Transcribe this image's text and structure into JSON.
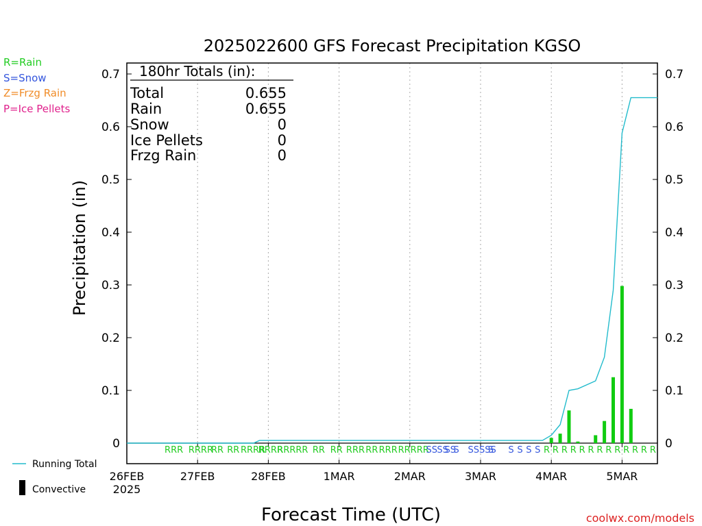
{
  "chart_data": {
    "type": "bar",
    "title": "2025022600 GFS Forecast Precipitation KGSO",
    "xlabel": "Forecast Time (UTC)",
    "ylabel": "Precipitation (in)",
    "ylim": [
      0,
      0.72
    ],
    "yticks": [
      "0",
      "0.1",
      "0.2",
      "0.3",
      "0.4",
      "0.5",
      "0.6",
      "0.7"
    ],
    "xlim_hours": [
      0,
      180
    ],
    "x_ticks": [
      {
        "hour": 0,
        "label": "26FEB",
        "sublabel": "2025"
      },
      {
        "hour": 24,
        "label": "27FEB"
      },
      {
        "hour": 48,
        "label": "28FEB"
      },
      {
        "hour": 72,
        "label": "1MAR"
      },
      {
        "hour": 96,
        "label": "2MAR"
      },
      {
        "hour": 120,
        "label": "3MAR"
      },
      {
        "hour": 144,
        "label": "4MAR"
      },
      {
        "hour": 168,
        "label": "5MAR"
      }
    ],
    "grid": true,
    "legend_types": [
      {
        "text": "R=Rain",
        "color": "#22cc22"
      },
      {
        "text": "S=Snow",
        "color": "#3355dd"
      },
      {
        "text": "Z=Frzg Rain",
        "color": "#f08c28"
      },
      {
        "text": "P=Ice Pellets",
        "color": "#e0208c"
      }
    ],
    "legend_series": [
      {
        "text": "Running Total",
        "color": "#22bbcc"
      },
      {
        "text": "Convective",
        "color": "#000000"
      }
    ],
    "totals": {
      "heading": "180hr Totals (in):",
      "rows": [
        {
          "label": "Total",
          "value": "0.655"
        },
        {
          "label": "Rain",
          "value": "0.655"
        },
        {
          "label": "Snow",
          "value": "0"
        },
        {
          "label": "Ice Pellets",
          "value": "0"
        },
        {
          "label": "Frzg Rain",
          "value": "0"
        }
      ]
    },
    "series": [
      {
        "name": "Precipitation",
        "color": "#11cc11",
        "points": [
          {
            "hour": 144,
            "value": 0.01
          },
          {
            "hour": 147,
            "value": 0.018
          },
          {
            "hour": 150,
            "value": 0.062
          },
          {
            "hour": 153,
            "value": 0.003
          },
          {
            "hour": 159,
            "value": 0.015
          },
          {
            "hour": 162,
            "value": 0.042
          },
          {
            "hour": 165,
            "value": 0.125
          },
          {
            "hour": 168,
            "value": 0.298
          },
          {
            "hour": 171,
            "value": 0.065
          }
        ]
      },
      {
        "name": "Running Total",
        "color": "#22bbcc",
        "points": [
          {
            "hour": 0,
            "value": 0
          },
          {
            "hour": 43,
            "value": 0
          },
          {
            "hour": 45,
            "value": 0.005
          },
          {
            "hour": 141,
            "value": 0.005
          },
          {
            "hour": 144,
            "value": 0.015
          },
          {
            "hour": 147,
            "value": 0.035
          },
          {
            "hour": 150,
            "value": 0.1
          },
          {
            "hour": 153,
            "value": 0.103
          },
          {
            "hour": 159,
            "value": 0.118
          },
          {
            "hour": 162,
            "value": 0.163
          },
          {
            "hour": 165,
            "value": 0.29
          },
          {
            "hour": 168,
            "value": 0.588
          },
          {
            "hour": 171,
            "value": 0.655
          },
          {
            "hour": 180,
            "value": 0.655
          }
        ]
      }
    ],
    "ptype_strip": [
      {
        "text": "RRR",
        "color": "#22cc22",
        "hour": 12.8
      },
      {
        "text": "RRRR",
        "color": "#22cc22",
        "hour": 20.9
      },
      {
        "text": "RR",
        "color": "#22cc22",
        "hour": 28.6
      },
      {
        "text": "RR",
        "color": "#22cc22",
        "hour": 34
      },
      {
        "text": "RRRR",
        "color": "#22cc22",
        "hour": 38.6
      },
      {
        "text": "RRRR",
        "color": "#22cc22",
        "hour": 44.6
      },
      {
        "text": "RRRRR",
        "color": "#22cc22",
        "hour": 51
      },
      {
        "text": "RR",
        "color": "#22cc22",
        "hour": 63
      },
      {
        "text": "RR",
        "color": "#22cc22",
        "hour": 69
      },
      {
        "text": "RRR",
        "color": "#22cc22",
        "hour": 74.4
      },
      {
        "text": "RR",
        "color": "#22cc22",
        "hour": 81
      },
      {
        "text": "RRR",
        "color": "#22cc22",
        "hour": 85.5
      },
      {
        "text": "RRRRR",
        "color": "#22cc22",
        "hour": 92
      },
      {
        "text": "SS",
        "color": "#3355dd",
        "hour": 101.5
      },
      {
        "text": "SS",
        "color": "#3355dd",
        "hour": 105.2
      },
      {
        "text": "SS",
        "color": "#3355dd",
        "hour": 107.8
      },
      {
        "text": "S",
        "color": "#3355dd",
        "hour": 110.8
      },
      {
        "text": "SSSSS",
        "color": "#3355dd",
        "hour": 115.7
      },
      {
        "text": "S",
        "color": "#3355dd",
        "hour": 122.5
      },
      {
        "text": "S",
        "color": "#3355dd",
        "hour": 129.4
      },
      {
        "text": "S",
        "color": "#3355dd",
        "hour": 132.4
      },
      {
        "text": "S",
        "color": "#3355dd",
        "hour": 135.4
      },
      {
        "text": "S",
        "color": "#3355dd",
        "hour": 138.4
      },
      {
        "text": "R",
        "color": "#22cc22",
        "hour": 141.4
      },
      {
        "text": "R",
        "color": "#22cc22",
        "hour": 144.4
      },
      {
        "text": "R",
        "color": "#22cc22",
        "hour": 147.4
      },
      {
        "text": "R",
        "color": "#22cc22",
        "hour": 150.4
      },
      {
        "text": "R",
        "color": "#22cc22",
        "hour": 153.4
      },
      {
        "text": "R",
        "color": "#22cc22",
        "hour": 156.4
      },
      {
        "text": "R",
        "color": "#22cc22",
        "hour": 159.4
      },
      {
        "text": "R",
        "color": "#22cc22",
        "hour": 162.4
      },
      {
        "text": "R",
        "color": "#22cc22",
        "hour": 165.4
      },
      {
        "text": "R",
        "color": "#22cc22",
        "hour": 168.4
      },
      {
        "text": "R",
        "color": "#22cc22",
        "hour": 171.4
      },
      {
        "text": "R",
        "color": "#22cc22",
        "hour": 174.4
      },
      {
        "text": "R",
        "color": "#22cc22",
        "hour": 177.4
      }
    ],
    "credit": "coolwx.com/models"
  }
}
